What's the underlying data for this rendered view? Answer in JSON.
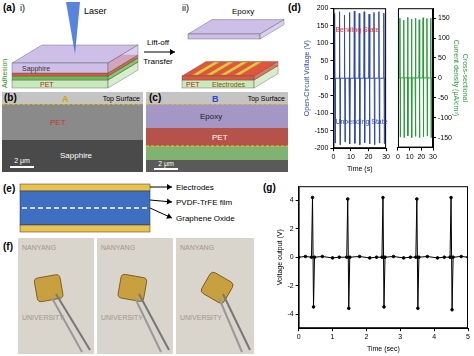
{
  "panels": {
    "a": {
      "label": "(a)",
      "step_1": "i)",
      "step_2": "ii)",
      "laser": "Laser",
      "adhesion": "Adhesion",
      "sapphire": "Sapphire",
      "pet_1": "PET",
      "lift_off": "Lift-off",
      "transfer": "Transfer",
      "epoxy": "Epoxy",
      "electrodes": "Electrodes",
      "pet_2": "PET"
    },
    "b": {
      "label": "(b)",
      "line_label": "A",
      "layer": "PET",
      "surface": "Top Surface",
      "substrate": "Sapphire",
      "scale_bar": "2 μm"
    },
    "c": {
      "label": "(c)",
      "line_label": "B",
      "layer_top": "Epoxy",
      "layer": "PET",
      "surface": "Top Surface",
      "scale_bar": "2 μm"
    },
    "d": {
      "label": "(d)"
    },
    "e": {
      "label": "(e)",
      "layers": [
        "Electrodes",
        "PVDF-TrFE film",
        "Graphene Oxide"
      ]
    },
    "f": {
      "label": "(f)",
      "background_texts": [
        "NANYANG",
        "UNIVERSITY"
      ]
    },
    "g": {
      "label": "(g)"
    }
  },
  "chart_data": [
    {
      "type": "line",
      "x_label": "Time (s)",
      "y_label": "Open-Circuit Voltage (V)",
      "x": [
        0,
        0.5,
        0.7,
        1.0,
        1.2,
        3.3,
        3.5,
        3.8,
        4.0,
        6.1,
        6.3,
        6.6,
        6.8,
        8.9,
        9.1,
        9.4,
        9.6,
        11.7,
        11.9,
        12.2,
        12.4,
        14.5,
        14.7,
        15.0,
        15.2,
        17.3,
        17.5,
        17.8,
        18.0,
        20.1,
        20.3,
        20.6,
        20.8,
        22.9,
        23.1,
        23.4,
        23.6,
        25.7,
        25.9,
        26.2,
        26.4,
        28.5,
        28.7,
        29.0,
        29.2,
        30
      ],
      "values": [
        0,
        0,
        185,
        -185,
        0,
        0,
        190,
        -190,
        0,
        0,
        180,
        -182,
        0,
        0,
        188,
        -188,
        0,
        0,
        192,
        -186,
        0,
        0,
        185,
        -190,
        0,
        0,
        190,
        -184,
        0,
        0,
        183,
        -188,
        0,
        0,
        188,
        -190,
        0,
        0,
        190,
        -185,
        0,
        0,
        186,
        -187,
        0,
        0
      ],
      "color": "#2f4aa8",
      "xlim": [
        0,
        30
      ],
      "xticks": [
        0,
        10,
        20,
        30
      ],
      "ylim": [
        -200,
        200
      ],
      "yticks": [
        -200,
        -150,
        -100,
        -50,
        0,
        50,
        100,
        150,
        200
      ],
      "grid": false,
      "marker": "none",
      "annotations": [
        {
          "text": "Bending State",
          "color": "#e0302a"
        },
        {
          "text": "Unbending State",
          "color": "#2f4aa8"
        }
      ]
    },
    {
      "type": "line",
      "y_label": [
        "Cross-sectional",
        "Current density (μA/cm²)"
      ],
      "x": [
        0,
        1.5,
        1.7,
        2.0,
        2.2,
        4.8,
        5.0,
        5.3,
        5.5,
        8.1,
        8.3,
        8.6,
        8.8,
        11.4,
        11.6,
        11.9,
        12.1,
        14.7,
        14.9,
        15.2,
        15.4,
        18.0,
        18.2,
        18.5,
        18.7,
        21.3,
        21.5,
        21.8,
        22.0,
        24.6,
        24.8,
        25.1,
        25.3,
        27.9,
        28.1,
        28.4,
        28.6,
        30
      ],
      "values": [
        0,
        0,
        150,
        -148,
        0,
        0,
        145,
        -150,
        0,
        0,
        152,
        -145,
        0,
        0,
        148,
        -150,
        0,
        0,
        150,
        -147,
        0,
        0,
        146,
        -150,
        0,
        0,
        151,
        -148,
        0,
        0,
        149,
        -146,
        0,
        0,
        150,
        -150,
        0,
        0
      ],
      "color": "#2a9a3a",
      "xlim": [
        0,
        30
      ],
      "xticks": [
        0,
        10,
        20,
        30
      ],
      "ylim": [
        -175,
        175
      ],
      "yticks": [
        -150,
        -100,
        -50,
        0,
        50,
        100,
        150
      ],
      "grid": false,
      "marker": "none"
    },
    {
      "type": "line",
      "x_label": "Time (sec)",
      "y_label": "Voltage output (V)",
      "x": [
        0,
        0.2,
        0.38,
        0.41,
        0.44,
        0.47,
        0.7,
        1.0,
        1.2,
        1.42,
        1.45,
        1.48,
        1.51,
        1.8,
        2.1,
        2.3,
        2.46,
        2.49,
        2.52,
        2.55,
        2.8,
        3.1,
        3.3,
        3.46,
        3.49,
        3.52,
        3.55,
        3.8,
        4.1,
        4.3,
        4.47,
        4.5,
        4.53,
        4.56,
        4.8,
        5.0
      ],
      "values": [
        0,
        0.05,
        0,
        4.2,
        -3.5,
        0,
        0.05,
        -0.05,
        0,
        0,
        4.1,
        -3.6,
        0,
        0.05,
        -0.05,
        0,
        0,
        4.2,
        -3.5,
        0,
        0.05,
        -0.05,
        0,
        0,
        4.1,
        -3.6,
        0,
        0.05,
        -0.05,
        0,
        0,
        4.2,
        -3.7,
        0,
        0.05,
        0
      ],
      "color": "#000000",
      "xlim": [
        0,
        5
      ],
      "xticks": [
        0,
        1,
        2,
        3,
        4,
        5
      ],
      "ylim": [
        -5,
        5
      ],
      "yticks": [
        -4,
        -2,
        0,
        2,
        4
      ],
      "grid": false,
      "marker": "circle"
    }
  ]
}
